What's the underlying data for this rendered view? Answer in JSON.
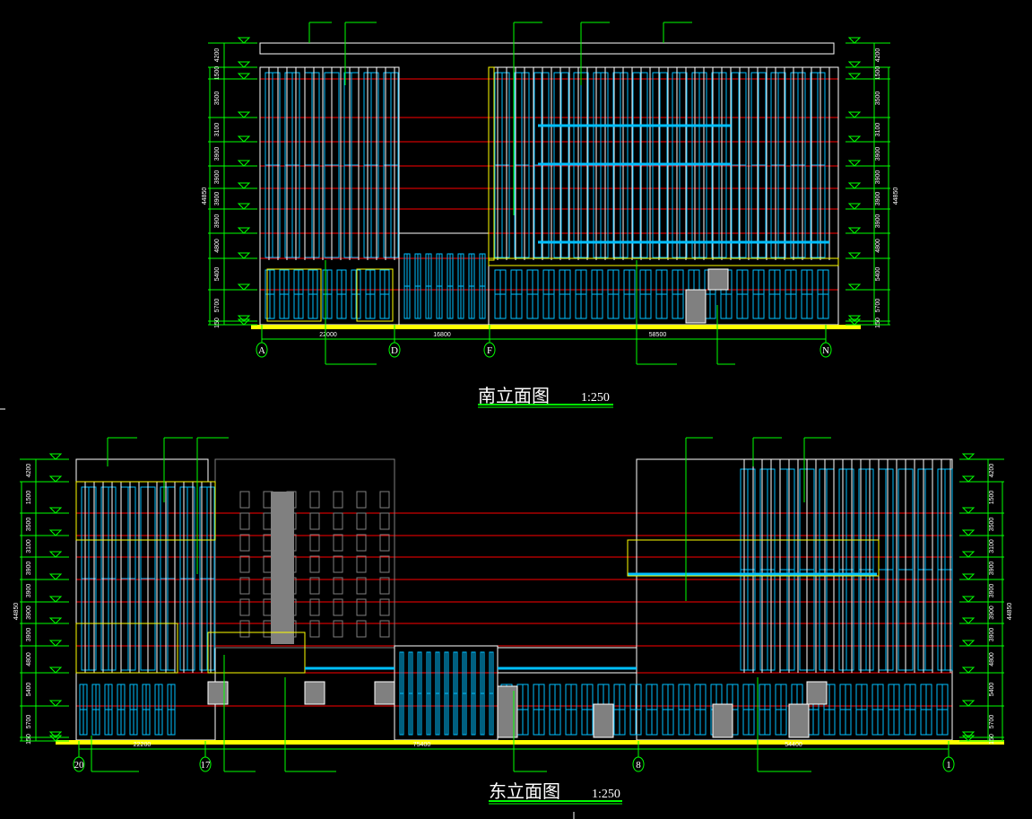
{
  "colors": {
    "background": "#000000",
    "grid_axis": "#00ff00",
    "floor_line": "#ff0000",
    "outline": "#ffffff",
    "glazing": "#00bfff",
    "accent": "#ffff00",
    "shade": "#808080"
  },
  "south_elevation": {
    "title": "南立面图",
    "scale": "1:250",
    "total_height": "44850",
    "level_dims": [
      "4200",
      "1500",
      "3500",
      "3100",
      "3900",
      "3900",
      "3900",
      "3900",
      "4800",
      "5400",
      "5700",
      "150"
    ],
    "axes": [
      "A",
      "D",
      "F",
      "N"
    ],
    "spans": [
      "22000",
      "16800",
      "58500"
    ]
  },
  "east_elevation": {
    "title": "东立面图",
    "scale": "1:250",
    "total_height": "44850",
    "level_dims": [
      "4200",
      "1500",
      "3500",
      "3100",
      "3900",
      "3900",
      "3900",
      "3900",
      "4800",
      "5400",
      "5700",
      "150"
    ],
    "axes": [
      "20",
      "17",
      "8",
      "1"
    ],
    "spans": [
      "22200",
      "75400",
      "54400"
    ]
  }
}
